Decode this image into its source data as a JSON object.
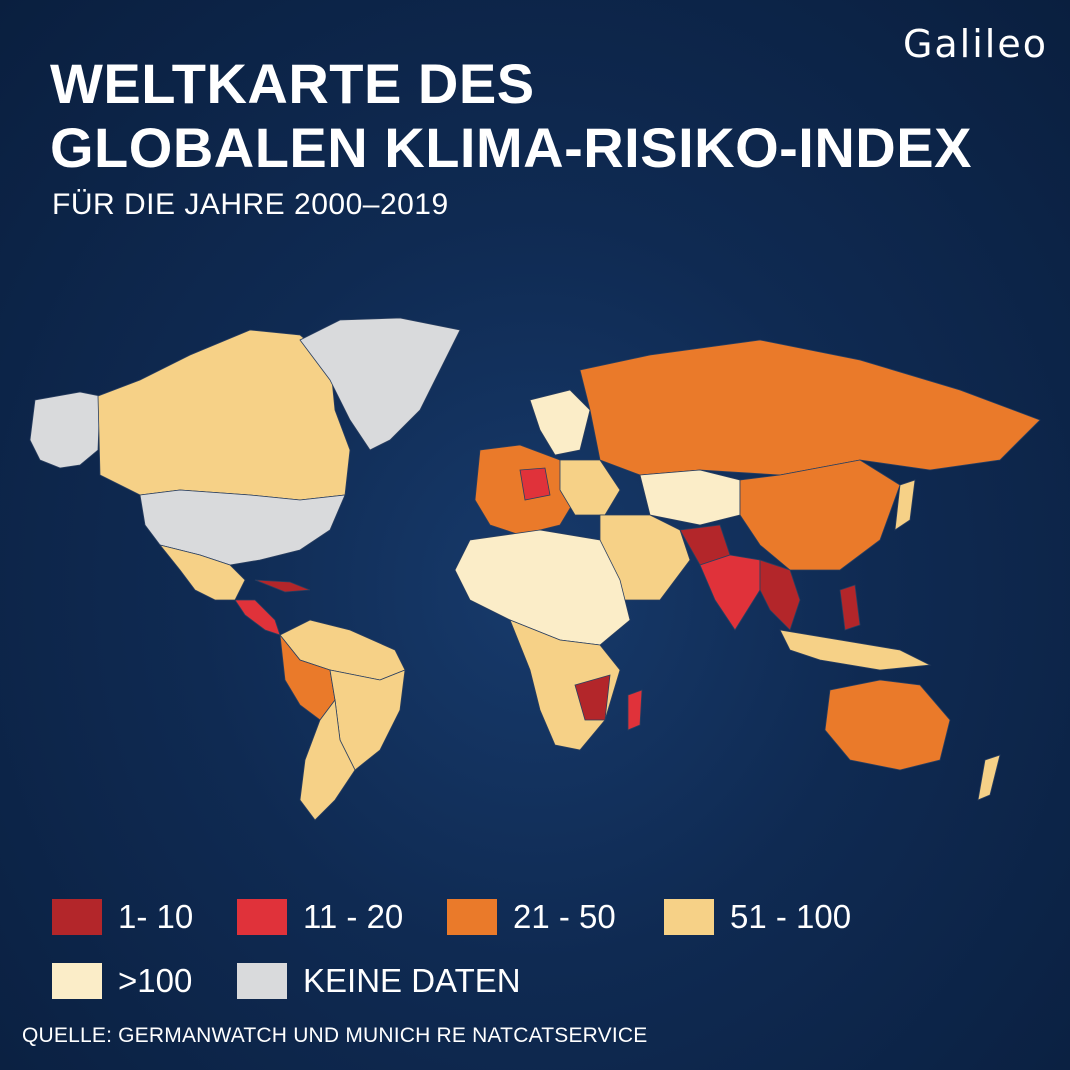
{
  "brand": {
    "logo_text": "Galileo"
  },
  "header": {
    "title_line1": "WELTKARTE DES",
    "title_line2": "GLOBALEN KLIMA-RISIKO-INDEX",
    "subtitle": "FÜR DIE JAHRE 2000–2019"
  },
  "legend": {
    "items": [
      {
        "label": "1- 10",
        "color": "#b3262a"
      },
      {
        "label": "11 - 20",
        "color": "#e0323a"
      },
      {
        "label": "21 - 50",
        "color": "#ea7a2a"
      },
      {
        "label": "51 - 100",
        "color": "#f6d187"
      },
      {
        "label": ">100",
        "color": "#fbedc8"
      },
      {
        "label": "KEINE DATEN",
        "color": "#d9dadc"
      }
    ]
  },
  "source": "QUELLE: GERMANWATCH UND MUNICH RE NATCATSERVICE"
}
